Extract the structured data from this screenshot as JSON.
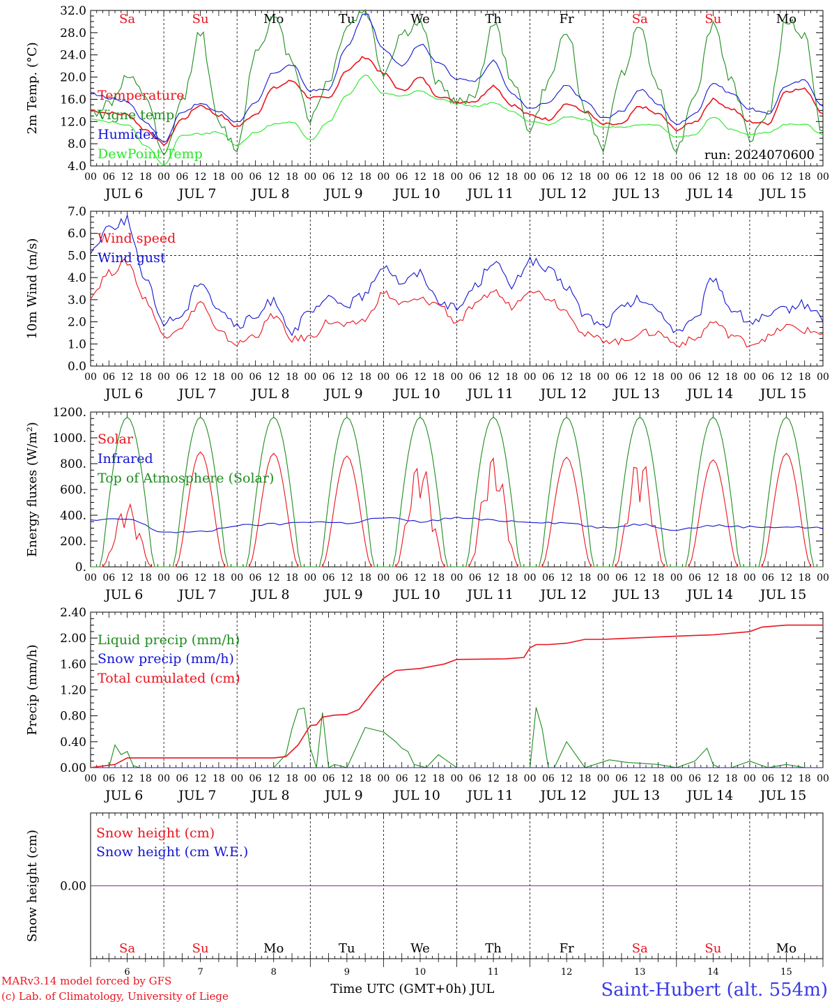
{
  "day_labels": [
    "Sa",
    "Su",
    "Mo",
    "Tu",
    "We",
    "Th",
    "Fr",
    "Sa",
    "Su",
    "Mo"
  ],
  "day_colors": [
    "#e8141e",
    "#e8141e",
    "#000000",
    "#000000",
    "#000000",
    "#000000",
    "#000000",
    "#e8141e",
    "#e8141e",
    "#000000"
  ],
  "date_labels": [
    "JUL  6",
    "JUL  7",
    "JUL  8",
    "JUL  9",
    "JUL 10",
    "JUL 11",
    "JUL 12",
    "JUL 13",
    "JUL 14",
    "JUL 15"
  ],
  "day_numbers": [
    "6",
    "7",
    "8",
    "9",
    "10",
    "11",
    "12",
    "13",
    "14",
    "15"
  ],
  "hour_ticks": [
    "00",
    "06",
    "12",
    "18"
  ],
  "hour_end": "00",
  "run_label": "run: 2024070600",
  "footer": {
    "model": "MARv3.14 model forced by GFS",
    "credit": "(c) Lab. of Climatology, University of Liege",
    "xlabel": "Time UTC (GMT+0h) JUL",
    "station": "Saint-Hubert (alt. 554m)"
  },
  "colors": {
    "red": "#e8141e",
    "green": "#1e8c1e",
    "blue": "#1414d2",
    "lime": "#28e628",
    "purple": "#8c288c"
  },
  "chart_data": [
    {
      "type": "line",
      "ylabel": "2m Temp. (°C)",
      "ylim": [
        4,
        34
      ],
      "yticks": [
        "4.0",
        "8.0",
        "12.0",
        "16.0",
        "20.0",
        "24.0",
        "28.0",
        "32.0"
      ],
      "grid": "dashed day separators",
      "series": [
        {
          "name": "Temperature",
          "color": "red",
          "hours": [
            0,
            6,
            12,
            18,
            24,
            30,
            36,
            42,
            48,
            54,
            60,
            66,
            72,
            78,
            84,
            90,
            96,
            102,
            108,
            114,
            120,
            126,
            132,
            138,
            144,
            150,
            156,
            162,
            168,
            174,
            180,
            186,
            192,
            198,
            204,
            210,
            216,
            222,
            228,
            234,
            240
          ],
          "values": [
            14.8,
            14.2,
            13.9,
            11.0,
            8.2,
            13.0,
            15.7,
            13.8,
            11.6,
            14.0,
            19.0,
            20.4,
            17.2,
            17.0,
            22.5,
            25.0,
            21.8,
            18.5,
            21.0,
            17.5,
            16.4,
            16.5,
            19.5,
            15.8,
            13.8,
            13.0,
            16.0,
            14.5,
            12.0,
            12.0,
            15.5,
            14.0,
            11.0,
            12.5,
            16.8,
            15.0,
            12.5,
            12.2,
            18.5,
            18.8,
            14.3
          ]
        },
        {
          "name": "Vigne temp",
          "color": "green",
          "hours": [
            0,
            6,
            12,
            18,
            24,
            30,
            36,
            42,
            48,
            54,
            60,
            66,
            72,
            78,
            84,
            90,
            96,
            102,
            108,
            114,
            120,
            126,
            132,
            138,
            144,
            150,
            156,
            162,
            168,
            174,
            180,
            186,
            192,
            198,
            204,
            210,
            216,
            222,
            228,
            234,
            240
          ],
          "values": [
            14.0,
            16.0,
            21.0,
            17.5,
            5.5,
            16.5,
            30.0,
            12.0,
            7.5,
            26.0,
            32.5,
            24.5,
            13.0,
            20.5,
            31.0,
            34.0,
            22.0,
            29.5,
            31.5,
            20.0,
            16.0,
            18.0,
            31.5,
            21.0,
            11.0,
            20.0,
            30.5,
            14.5,
            7.5,
            22.0,
            31.0,
            19.0,
            7.0,
            18.0,
            31.5,
            20.5,
            9.5,
            14.0,
            32.0,
            29.0,
            10.0
          ]
        },
        {
          "name": "Humidex",
          "color": "blue",
          "hours": [
            0,
            6,
            12,
            18,
            24,
            30,
            36,
            42,
            48,
            54,
            60,
            66,
            72,
            78,
            84,
            90,
            96,
            102,
            108,
            114,
            120,
            126,
            132,
            138,
            144,
            150,
            156,
            162,
            168,
            174,
            180,
            186,
            192,
            198,
            204,
            210,
            216,
            222,
            228,
            234,
            240
          ],
          "values": [
            18.0,
            17.2,
            16.4,
            12.5,
            8.6,
            14.5,
            16.0,
            14.5,
            12.5,
            16.0,
            22.0,
            23.5,
            18.5,
            18.8,
            27.0,
            33.5,
            26.5,
            23.5,
            27.5,
            24.0,
            20.7,
            20.5,
            24.2,
            18.0,
            15.0,
            16.2,
            19.5,
            16.5,
            13.2,
            14.5,
            18.7,
            16.0,
            12.0,
            14.0,
            20.0,
            18.0,
            15.0,
            14.0,
            19.5,
            20.5,
            15.5
          ]
        },
        {
          "name": "DewPoint Temp",
          "color": "lime",
          "hours": [
            0,
            6,
            12,
            18,
            24,
            30,
            36,
            42,
            48,
            54,
            60,
            66,
            72,
            78,
            84,
            90,
            96,
            102,
            108,
            114,
            120,
            126,
            132,
            138,
            144,
            150,
            156,
            162,
            168,
            174,
            180,
            186,
            192,
            198,
            204,
            210,
            216,
            222,
            228,
            234,
            240
          ],
          "values": [
            13.2,
            12.5,
            12.0,
            8.0,
            4.2,
            10.0,
            10.2,
            10.5,
            8.0,
            10.5,
            12.0,
            12.5,
            9.0,
            12.5,
            17.5,
            21.5,
            18.0,
            17.5,
            18.5,
            17.0,
            16.0,
            15.5,
            16.2,
            14.5,
            12.5,
            12.0,
            13.5,
            13.0,
            11.5,
            11.5,
            12.0,
            11.8,
            9.5,
            10.0,
            13.5,
            11.0,
            10.0,
            10.5,
            12.0,
            12.0,
            10.0
          ]
        }
      ]
    },
    {
      "type": "line",
      "ylabel": "10m Wind (m/s)",
      "ylim": [
        0,
        7
      ],
      "yticks": [
        "0.0",
        "1.0",
        "2.0",
        "3.0",
        "4.0",
        "5.0",
        "6.0",
        "7.0"
      ],
      "grid": "dashed day separators, dashed line at 5.0",
      "series": [
        {
          "name": "Wind speed",
          "color": "red",
          "hours": [
            0,
            6,
            12,
            18,
            24,
            30,
            36,
            42,
            48,
            54,
            60,
            66,
            72,
            78,
            84,
            90,
            96,
            102,
            108,
            114,
            120,
            126,
            132,
            138,
            144,
            150,
            156,
            162,
            168,
            174,
            180,
            186,
            192,
            198,
            204,
            210,
            216,
            222,
            228,
            234,
            240
          ],
          "values": [
            3.2,
            4.2,
            4.7,
            3.0,
            1.4,
            1.8,
            2.9,
            1.5,
            1.0,
            1.4,
            2.3,
            1.2,
            1.3,
            2.0,
            1.8,
            2.1,
            3.3,
            2.8,
            3.0,
            2.8,
            2.0,
            2.7,
            3.4,
            2.7,
            3.5,
            3.1,
            2.5,
            1.4,
            1.2,
            1.1,
            1.5,
            1.5,
            1.0,
            1.2,
            2.0,
            1.4,
            1.0,
            1.3,
            1.8,
            1.6,
            1.5
          ]
        },
        {
          "name": "Wind gust",
          "color": "blue",
          "hours": [
            0,
            6,
            12,
            18,
            24,
            30,
            36,
            42,
            48,
            54,
            60,
            66,
            72,
            78,
            84,
            90,
            96,
            102,
            108,
            114,
            120,
            126,
            132,
            138,
            144,
            150,
            156,
            162,
            168,
            174,
            180,
            186,
            192,
            198,
            204,
            210,
            216,
            222,
            228,
            234,
            240
          ],
          "values": [
            5.2,
            6.3,
            6.6,
            3.8,
            2.0,
            2.3,
            3.9,
            2.6,
            1.8,
            2.2,
            3.0,
            1.6,
            2.4,
            3.0,
            2.8,
            3.2,
            4.6,
            3.8,
            4.2,
            3.0,
            2.6,
            3.6,
            4.8,
            3.6,
            4.8,
            4.3,
            3.6,
            2.3,
            1.8,
            2.6,
            3.0,
            2.5,
            1.6,
            2.0,
            4.0,
            2.6,
            2.0,
            2.2,
            2.6,
            2.8,
            2.2
          ]
        }
      ]
    },
    {
      "type": "line",
      "ylabel": "Energy fluxes (W/m²)",
      "ylim": [
        0,
        1200
      ],
      "yticks": [
        "0.",
        "200.",
        "400.",
        "600.",
        "800.",
        "1000.",
        "1200."
      ],
      "grid": "dashed day separators",
      "series": [
        {
          "name": "Solar",
          "color": "red",
          "daily_peaks": [
            500,
            890,
            880,
            860,
            840,
            870,
            850,
            880,
            830,
            880
          ]
        },
        {
          "name": "Infrared",
          "color": "blue",
          "hours": [
            0,
            12,
            24,
            36,
            48,
            60,
            72,
            84,
            96,
            108,
            120,
            132,
            144,
            156,
            168,
            180,
            192,
            204,
            216,
            228,
            240
          ],
          "values": [
            360,
            370,
            270,
            270,
            320,
            330,
            350,
            340,
            380,
            350,
            380,
            360,
            350,
            340,
            300,
            330,
            290,
            320,
            310,
            310,
            300
          ]
        },
        {
          "name": "Top of Atmosphere (Solar)",
          "color": "green",
          "daily_peak": 1160
        }
      ]
    },
    {
      "type": "line",
      "ylabel": "Precip (mm/h)",
      "ylim": [
        0,
        2.4
      ],
      "yticks": [
        "0.00",
        "0.40",
        "0.80",
        "1.20",
        "1.60",
        "2.00",
        "2.40"
      ],
      "grid": "dashed day separators",
      "series": [
        {
          "name": "Liquid precip (mm/h)",
          "color": "green",
          "hours": [
            0,
            6,
            8,
            10,
            12,
            14,
            16,
            24,
            48,
            60,
            64,
            66,
            68,
            70,
            72,
            74,
            76,
            78,
            80,
            84,
            90,
            96,
            100,
            102,
            104,
            106,
            110,
            114,
            120,
            132,
            142,
            144,
            146,
            148,
            150,
            152,
            156,
            162,
            170,
            176,
            186,
            192,
            198,
            202,
            204,
            206,
            210,
            216,
            222,
            228,
            234,
            240
          ],
          "values": [
            0,
            0,
            0.35,
            0.2,
            0.25,
            0.03,
            0,
            0,
            0,
            0,
            0.2,
            0.6,
            0.9,
            0.92,
            0.3,
            0,
            0.85,
            0,
            0.05,
            0,
            0.62,
            0.55,
            0.4,
            0.3,
            0.25,
            0.05,
            0,
            0.2,
            0,
            0,
            0,
            0,
            0.93,
            0.6,
            0,
            0,
            0.4,
            0,
            0.12,
            0.08,
            0.05,
            0,
            0.1,
            0.3,
            0.05,
            0,
            0,
            0.1,
            0,
            0.05,
            0,
            0
          ]
        },
        {
          "name": "Snow precip (mm/h)",
          "color": "blue",
          "hours": [
            0,
            240
          ],
          "values": [
            0,
            0
          ]
        },
        {
          "name": "Total cumulated (cm)",
          "color": "red",
          "hours": [
            0,
            8,
            12,
            24,
            48,
            60,
            64,
            68,
            72,
            74,
            76,
            80,
            84,
            88,
            92,
            96,
            100,
            108,
            116,
            120,
            136,
            142,
            144,
            146,
            150,
            156,
            162,
            168,
            192,
            204,
            216,
            220,
            228,
            240
          ],
          "values": [
            0,
            0.05,
            0.15,
            0.15,
            0.15,
            0.15,
            0.17,
            0.35,
            0.65,
            0.66,
            0.78,
            0.81,
            0.82,
            0.9,
            1.15,
            1.38,
            1.5,
            1.53,
            1.6,
            1.67,
            1.68,
            1.7,
            1.85,
            1.9,
            1.9,
            1.92,
            1.98,
            1.98,
            2.03,
            2.05,
            2.1,
            2.17,
            2.2,
            2.2
          ]
        }
      ]
    },
    {
      "type": "line",
      "ylabel": "Snow height (cm)",
      "ylim": [
        -1,
        1
      ],
      "yticks": [
        "0.00"
      ],
      "grid": "dashed day separators",
      "series": [
        {
          "name": "Snow height (cm)",
          "color": "red",
          "hours": [
            0,
            240
          ],
          "values": [
            0,
            0
          ]
        },
        {
          "name": "Snow height (cm W.E.)",
          "color": "blue",
          "hours": [
            0,
            240
          ],
          "values": [
            0,
            0
          ]
        }
      ]
    }
  ]
}
